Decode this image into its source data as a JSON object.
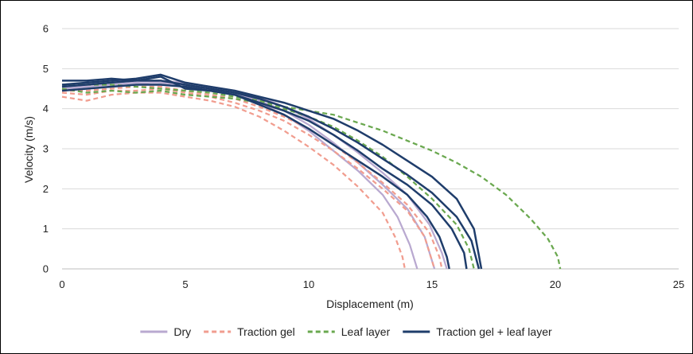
{
  "chart_data": {
    "type": "line",
    "title": "",
    "xlabel": "Displacement (m)",
    "ylabel": "Velocity (m/s)",
    "xlim": [
      0,
      25
    ],
    "ylim": [
      0,
      6
    ],
    "x_ticks": [
      "0",
      "5",
      "10",
      "15",
      "20",
      "25"
    ],
    "y_ticks": [
      "0",
      "1",
      "2",
      "3",
      "4",
      "5",
      "6"
    ],
    "grid": "horizontal",
    "legend_position": "bottom",
    "colors": {
      "dry": "#b9a9d0",
      "traction_gel": "#f19d8f",
      "leaf_layer": "#6aa84f",
      "traction_gel_leaf_layer": "#1f3d6b"
    },
    "series": [
      {
        "name": "Dry",
        "group": "dry",
        "dashed": false,
        "points": [
          [
            0,
            4.5
          ],
          [
            1,
            4.55
          ],
          [
            2,
            4.6
          ],
          [
            3,
            4.65
          ],
          [
            4,
            4.6
          ],
          [
            5,
            4.55
          ],
          [
            6,
            4.45
          ],
          [
            7,
            4.35
          ],
          [
            8,
            4.15
          ],
          [
            9,
            3.85
          ],
          [
            10,
            3.45
          ],
          [
            11,
            2.95
          ],
          [
            12,
            2.45
          ],
          [
            13,
            1.85
          ],
          [
            13.6,
            1.3
          ],
          [
            14.1,
            0.6
          ],
          [
            14.4,
            0
          ]
        ]
      },
      {
        "name": "Dry",
        "group": "dry",
        "dashed": false,
        "points": [
          [
            0,
            4.6
          ],
          [
            1,
            4.65
          ],
          [
            2,
            4.7
          ],
          [
            3,
            4.7
          ],
          [
            4,
            4.65
          ],
          [
            5,
            4.6
          ],
          [
            6,
            4.5
          ],
          [
            7,
            4.4
          ],
          [
            8,
            4.2
          ],
          [
            9,
            3.95
          ],
          [
            10,
            3.6
          ],
          [
            11,
            3.15
          ],
          [
            12,
            2.65
          ],
          [
            13,
            2.1
          ],
          [
            14,
            1.5
          ],
          [
            14.7,
            0.8
          ],
          [
            15.1,
            0
          ]
        ]
      },
      {
        "name": "Dry",
        "group": "dry",
        "dashed": false,
        "points": [
          [
            0,
            4.55
          ],
          [
            1,
            4.6
          ],
          [
            2,
            4.65
          ],
          [
            3,
            4.7
          ],
          [
            4,
            4.7
          ],
          [
            5,
            4.65
          ],
          [
            6,
            4.55
          ],
          [
            7,
            4.45
          ],
          [
            8,
            4.3
          ],
          [
            9,
            4.05
          ],
          [
            10,
            3.75
          ],
          [
            11,
            3.35
          ],
          [
            12,
            2.9
          ],
          [
            13,
            2.4
          ],
          [
            14,
            1.85
          ],
          [
            14.9,
            1.1
          ],
          [
            15.4,
            0.4
          ],
          [
            15.6,
            0
          ]
        ]
      },
      {
        "name": "Traction gel",
        "group": "traction_gel",
        "dashed": true,
        "points": [
          [
            0,
            4.3
          ],
          [
            1,
            4.2
          ],
          [
            2,
            4.35
          ],
          [
            3,
            4.4
          ],
          [
            4,
            4.4
          ],
          [
            5,
            4.3
          ],
          [
            6,
            4.2
          ],
          [
            7,
            4.05
          ],
          [
            8,
            3.8
          ],
          [
            9,
            3.45
          ],
          [
            10,
            3.05
          ],
          [
            11,
            2.6
          ],
          [
            12,
            2.05
          ],
          [
            13,
            1.4
          ],
          [
            13.5,
            0.8
          ],
          [
            13.8,
            0.3
          ],
          [
            13.9,
            0
          ]
        ]
      },
      {
        "name": "Traction gel",
        "group": "traction_gel",
        "dashed": true,
        "points": [
          [
            0,
            4.4
          ],
          [
            1,
            4.35
          ],
          [
            2,
            4.45
          ],
          [
            3,
            4.45
          ],
          [
            4,
            4.5
          ],
          [
            5,
            4.4
          ],
          [
            6,
            4.3
          ],
          [
            7,
            4.15
          ],
          [
            8,
            3.95
          ],
          [
            9,
            3.7
          ],
          [
            10,
            3.35
          ],
          [
            11,
            2.95
          ],
          [
            12,
            2.5
          ],
          [
            13,
            2.0
          ],
          [
            14,
            1.45
          ],
          [
            14.7,
            0.8
          ],
          [
            15.1,
            0
          ]
        ]
      },
      {
        "name": "Traction gel",
        "group": "traction_gel",
        "dashed": true,
        "points": [
          [
            0,
            4.45
          ],
          [
            1,
            4.45
          ],
          [
            2,
            4.5
          ],
          [
            3,
            4.55
          ],
          [
            4,
            4.55
          ],
          [
            5,
            4.45
          ],
          [
            6,
            4.35
          ],
          [
            7,
            4.25
          ],
          [
            8,
            4.05
          ],
          [
            9,
            3.8
          ],
          [
            10,
            3.5
          ],
          [
            11,
            3.1
          ],
          [
            12,
            2.65
          ],
          [
            13,
            2.15
          ],
          [
            14,
            1.6
          ],
          [
            14.9,
            0.9
          ],
          [
            15.3,
            0.3
          ],
          [
            15.4,
            0
          ]
        ]
      },
      {
        "name": "Leaf layer",
        "group": "leaf_layer",
        "dashed": true,
        "points": [
          [
            0,
            4.5
          ],
          [
            1,
            4.4
          ],
          [
            2,
            4.45
          ],
          [
            3,
            4.4
          ],
          [
            4,
            4.45
          ],
          [
            5,
            4.35
          ],
          [
            6,
            4.3
          ],
          [
            7,
            4.25
          ],
          [
            8,
            4.15
          ],
          [
            9,
            4.0
          ],
          [
            10,
            3.8
          ],
          [
            11,
            3.55
          ],
          [
            12,
            3.2
          ],
          [
            13,
            2.8
          ],
          [
            14,
            2.3
          ],
          [
            15,
            1.75
          ],
          [
            16,
            1.1
          ],
          [
            16.5,
            0.5
          ],
          [
            16.7,
            0
          ]
        ]
      },
      {
        "name": "Leaf layer",
        "group": "leaf_layer",
        "dashed": true,
        "points": [
          [
            0,
            4.6
          ],
          [
            1,
            4.6
          ],
          [
            2,
            4.6
          ],
          [
            3,
            4.55
          ],
          [
            4,
            4.5
          ],
          [
            5,
            4.45
          ],
          [
            6,
            4.4
          ],
          [
            7,
            4.3
          ],
          [
            8,
            4.2
          ],
          [
            9,
            4.05
          ],
          [
            10,
            3.95
          ],
          [
            11,
            3.85
          ],
          [
            12,
            3.65
          ],
          [
            13,
            3.45
          ],
          [
            14,
            3.2
          ],
          [
            15,
            2.95
          ],
          [
            16,
            2.65
          ],
          [
            17,
            2.3
          ],
          [
            18,
            1.85
          ],
          [
            19,
            1.25
          ],
          [
            19.7,
            0.75
          ],
          [
            20.1,
            0.3
          ],
          [
            20.2,
            0
          ]
        ]
      },
      {
        "name": "Traction gel + leaf layer",
        "group": "traction_gel_leaf_layer",
        "dashed": false,
        "points": [
          [
            0,
            4.7
          ],
          [
            1,
            4.7
          ],
          [
            2,
            4.75
          ],
          [
            3,
            4.7
          ],
          [
            4,
            4.8
          ],
          [
            5,
            4.5
          ],
          [
            6,
            4.45
          ],
          [
            7,
            4.35
          ],
          [
            8,
            4.1
          ],
          [
            9,
            3.85
          ],
          [
            10,
            3.5
          ],
          [
            11,
            3.1
          ],
          [
            12,
            2.7
          ],
          [
            13,
            2.3
          ],
          [
            14,
            1.85
          ],
          [
            14.8,
            1.3
          ],
          [
            15.3,
            0.8
          ],
          [
            15.6,
            0.3
          ],
          [
            15.7,
            0
          ]
        ]
      },
      {
        "name": "Traction gel + leaf layer",
        "group": "traction_gel_leaf_layer",
        "dashed": false,
        "points": [
          [
            0,
            4.45
          ],
          [
            1,
            4.5
          ],
          [
            2,
            4.55
          ],
          [
            3,
            4.6
          ],
          [
            4,
            4.6
          ],
          [
            5,
            4.55
          ],
          [
            6,
            4.45
          ],
          [
            7,
            4.35
          ],
          [
            8,
            4.15
          ],
          [
            9,
            3.95
          ],
          [
            10,
            3.7
          ],
          [
            11,
            3.35
          ],
          [
            12,
            2.95
          ],
          [
            13,
            2.5
          ],
          [
            14,
            2.1
          ],
          [
            15,
            1.6
          ],
          [
            15.8,
            1.0
          ],
          [
            16.3,
            0.4
          ],
          [
            16.4,
            0
          ]
        ]
      },
      {
        "name": "Traction gel + leaf layer",
        "group": "traction_gel_leaf_layer",
        "dashed": false,
        "points": [
          [
            0,
            4.55
          ],
          [
            1,
            4.6
          ],
          [
            2,
            4.65
          ],
          [
            3,
            4.7
          ],
          [
            4,
            4.7
          ],
          [
            5,
            4.6
          ],
          [
            6,
            4.5
          ],
          [
            7,
            4.4
          ],
          [
            8,
            4.25
          ],
          [
            9,
            4.05
          ],
          [
            10,
            3.8
          ],
          [
            11,
            3.5
          ],
          [
            12,
            3.15
          ],
          [
            13,
            2.75
          ],
          [
            14,
            2.35
          ],
          [
            15,
            1.9
          ],
          [
            16,
            1.3
          ],
          [
            16.6,
            0.7
          ],
          [
            16.9,
            0
          ]
        ]
      },
      {
        "name": "Traction gel + leaf layer",
        "group": "traction_gel_leaf_layer",
        "dashed": false,
        "points": [
          [
            0,
            4.6
          ],
          [
            1,
            4.65
          ],
          [
            2,
            4.7
          ],
          [
            3,
            4.75
          ],
          [
            4,
            4.85
          ],
          [
            5,
            4.65
          ],
          [
            6,
            4.55
          ],
          [
            7,
            4.45
          ],
          [
            8,
            4.3
          ],
          [
            9,
            4.15
          ],
          [
            10,
            3.95
          ],
          [
            11,
            3.75
          ],
          [
            12,
            3.45
          ],
          [
            13,
            3.1
          ],
          [
            14,
            2.7
          ],
          [
            15,
            2.3
          ],
          [
            16,
            1.75
          ],
          [
            16.7,
            1.0
          ],
          [
            17.0,
            0
          ]
        ]
      }
    ],
    "legend": [
      {
        "label": "Dry",
        "group": "dry",
        "dashed": false
      },
      {
        "label": "Traction gel",
        "group": "traction_gel",
        "dashed": true
      },
      {
        "label": "Leaf layer",
        "group": "leaf_layer",
        "dashed": true
      },
      {
        "label": "Traction gel + leaf layer",
        "group": "traction_gel_leaf_layer",
        "dashed": false
      }
    ]
  }
}
